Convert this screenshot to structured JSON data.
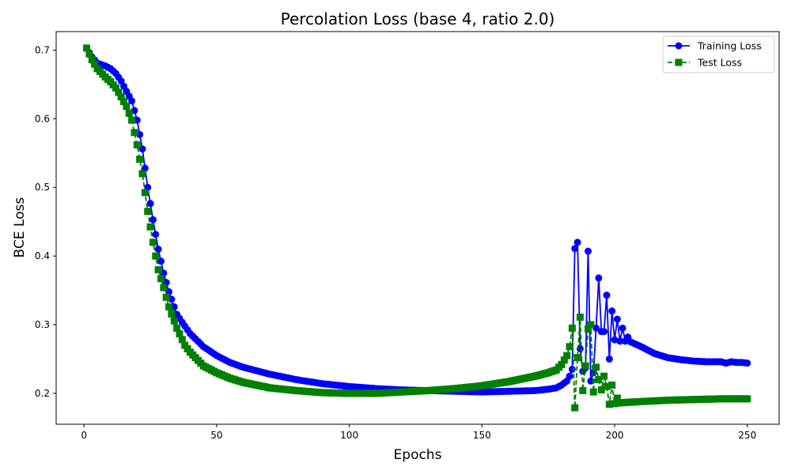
{
  "chart_data": {
    "type": "line",
    "title": "Percolation Loss (base 4, ratio 2.0)",
    "xlabel": "Epochs",
    "ylabel": "BCE Loss",
    "xlim": [
      -10.5,
      262
    ],
    "ylim": [
      0.155,
      0.727
    ],
    "xticks": [
      0,
      50,
      100,
      150,
      200,
      250
    ],
    "yticks": [
      0.2,
      0.3,
      0.4,
      0.5,
      0.6,
      0.7
    ],
    "ytick_labels": [
      "0.2",
      "0.3",
      "0.4",
      "0.5",
      "0.6",
      "0.7"
    ],
    "grid": false,
    "legend": {
      "position": "top-right",
      "entries": [
        "Training Loss",
        "Test Loss"
      ]
    },
    "series": [
      {
        "name": "Training Loss",
        "color": "#0000ff",
        "marker": "circle",
        "linestyle": "solid",
        "key_points": [
          [
            1,
            0.703
          ],
          [
            3,
            0.69
          ],
          [
            5,
            0.681
          ],
          [
            8,
            0.677
          ],
          [
            10,
            0.673
          ],
          [
            12,
            0.666
          ],
          [
            14,
            0.655
          ],
          [
            16,
            0.64
          ],
          [
            18,
            0.626
          ],
          [
            20,
            0.598
          ],
          [
            22,
            0.556
          ],
          [
            24,
            0.5
          ],
          [
            26,
            0.453
          ],
          [
            28,
            0.41
          ],
          [
            30,
            0.375
          ],
          [
            32,
            0.348
          ],
          [
            35,
            0.315
          ],
          [
            38,
            0.298
          ],
          [
            40,
            0.287
          ],
          [
            45,
            0.268
          ],
          [
            50,
            0.255
          ],
          [
            55,
            0.245
          ],
          [
            60,
            0.238
          ],
          [
            70,
            0.228
          ],
          [
            80,
            0.22
          ],
          [
            90,
            0.214
          ],
          [
            100,
            0.21
          ],
          [
            110,
            0.207
          ],
          [
            120,
            0.205
          ],
          [
            130,
            0.204
          ],
          [
            140,
            0.203
          ],
          [
            150,
            0.202
          ],
          [
            160,
            0.203
          ],
          [
            170,
            0.204
          ],
          [
            175,
            0.206
          ],
          [
            178,
            0.208
          ],
          [
            180,
            0.212
          ],
          [
            182,
            0.218
          ],
          [
            183,
            0.225
          ],
          [
            184,
            0.235
          ],
          [
            185,
            0.411
          ],
          [
            186,
            0.42
          ],
          [
            187,
            0.265
          ],
          [
            188,
            0.232
          ],
          [
            189,
            0.237
          ],
          [
            190,
            0.407
          ],
          [
            191,
            0.218
          ],
          [
            192,
            0.23
          ],
          [
            193,
            0.295
          ],
          [
            194,
            0.368
          ],
          [
            195,
            0.29
          ],
          [
            196,
            0.29
          ],
          [
            197,
            0.343
          ],
          [
            198,
            0.25
          ],
          [
            199,
            0.32
          ],
          [
            200,
            0.278
          ],
          [
            201,
            0.308
          ],
          [
            202,
            0.276
          ],
          [
            203,
            0.295
          ],
          [
            204,
            0.276
          ],
          [
            205,
            0.282
          ],
          [
            206,
            0.275
          ],
          [
            210,
            0.268
          ],
          [
            215,
            0.258
          ],
          [
            220,
            0.252
          ],
          [
            225,
            0.249
          ],
          [
            230,
            0.247
          ],
          [
            235,
            0.246
          ],
          [
            240,
            0.246
          ],
          [
            242,
            0.244
          ],
          [
            244,
            0.246
          ],
          [
            246,
            0.245
          ],
          [
            248,
            0.245
          ],
          [
            250,
            0.244
          ]
        ]
      },
      {
        "name": "Test Loss",
        "color": "#008000",
        "marker": "square",
        "linestyle": "dashed",
        "key_points": [
          [
            1,
            0.703
          ],
          [
            3,
            0.686
          ],
          [
            5,
            0.673
          ],
          [
            8,
            0.661
          ],
          [
            10,
            0.654
          ],
          [
            12,
            0.645
          ],
          [
            14,
            0.632
          ],
          [
            16,
            0.618
          ],
          [
            18,
            0.598
          ],
          [
            20,
            0.562
          ],
          [
            22,
            0.52
          ],
          [
            24,
            0.465
          ],
          [
            26,
            0.42
          ],
          [
            28,
            0.38
          ],
          [
            30,
            0.354
          ],
          [
            32,
            0.326
          ],
          [
            35,
            0.295
          ],
          [
            38,
            0.27
          ],
          [
            40,
            0.26
          ],
          [
            45,
            0.24
          ],
          [
            50,
            0.23
          ],
          [
            55,
            0.222
          ],
          [
            60,
            0.216
          ],
          [
            70,
            0.208
          ],
          [
            80,
            0.204
          ],
          [
            90,
            0.201
          ],
          [
            100,
            0.2
          ],
          [
            110,
            0.2
          ],
          [
            120,
            0.202
          ],
          [
            130,
            0.204
          ],
          [
            140,
            0.207
          ],
          [
            150,
            0.211
          ],
          [
            160,
            0.217
          ],
          [
            170,
            0.225
          ],
          [
            175,
            0.23
          ],
          [
            178,
            0.234
          ],
          [
            180,
            0.242
          ],
          [
            182,
            0.255
          ],
          [
            183,
            0.268
          ],
          [
            184,
            0.295
          ],
          [
            185,
            0.179
          ],
          [
            186,
            0.252
          ],
          [
            187,
            0.311
          ],
          [
            188,
            0.204
          ],
          [
            189,
            0.24
          ],
          [
            190,
            0.294
          ],
          [
            191,
            0.3
          ],
          [
            192,
            0.202
          ],
          [
            193,
            0.238
          ],
          [
            194,
            0.22
          ],
          [
            195,
            0.205
          ],
          [
            196,
            0.225
          ],
          [
            197,
            0.21
          ],
          [
            198,
            0.184
          ],
          [
            199,
            0.212
          ],
          [
            200,
            0.185
          ],
          [
            201,
            0.193
          ],
          [
            202,
            0.186
          ],
          [
            205,
            0.187
          ],
          [
            210,
            0.188
          ],
          [
            220,
            0.19
          ],
          [
            230,
            0.191
          ],
          [
            240,
            0.192
          ],
          [
            250,
            0.192
          ]
        ]
      }
    ]
  }
}
